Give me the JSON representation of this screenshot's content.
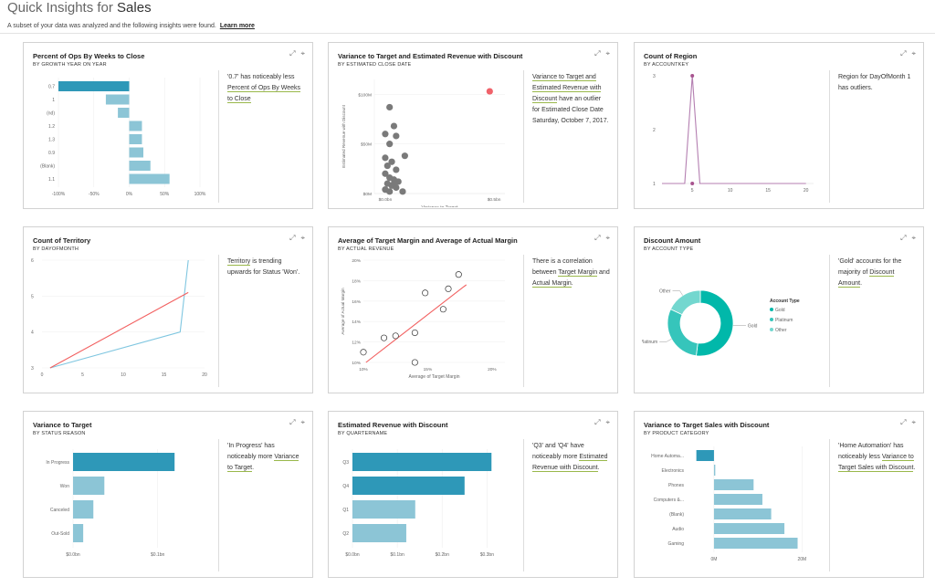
{
  "header": {
    "title_prefix": "Quick Insights for ",
    "title_strong": "Sales",
    "subtitle": "A subset of your data was analyzed and the following insights were found.",
    "learn_more": "Learn more"
  },
  "icons": {
    "expand": "expand-icon",
    "pin": "pin-icon"
  },
  "cards": {
    "c1": {
      "title": "Percent of Ops By Weeks to Close",
      "subtitle": "BY GROWTH YEAR ON YEAR",
      "insight_pre": "'0.7' has noticeably less ",
      "insight_link": "Percent of Ops By Weeks to Close",
      "insight_post": "",
      "chart_data": {
        "type": "bar",
        "orientation": "horizontal",
        "categories": [
          "0.7",
          "1",
          "(nd)",
          "1.2",
          "1.3",
          "0.9",
          "(Blank)",
          "1.1"
        ],
        "values": [
          -100,
          -33,
          -16,
          18,
          18,
          20,
          30,
          57
        ],
        "highlight_index": 0,
        "xticks": [
          "-100%",
          "-50%",
          "0%",
          "50%",
          "100%"
        ],
        "xlim": [
          -100,
          100
        ]
      }
    },
    "c2": {
      "title": "Variance to Target and Estimated Revenue with Discount",
      "subtitle": "BY ESTIMATED CLOSE DATE",
      "insight_pre": "",
      "insight_link": "Variance to Target and Estimated Revenue with Discount",
      "insight_post": " have an outlier for Estimated Close Date Saturday, October 7, 2017.",
      "chart_data": {
        "type": "scatter",
        "xlabel": "Variance to Target",
        "ylabel": "Estimated Revenue with Discount",
        "xticks": [
          "$0.0bn",
          "$0.5bn"
        ],
        "yticks": [
          "$100M",
          "$50M",
          "$0M"
        ],
        "xlim": [
          -0.05,
          0.55
        ],
        "ylim": [
          0,
          115
        ],
        "points": [
          [
            0.02,
            87
          ],
          [
            0.04,
            68
          ],
          [
            0.0,
            60
          ],
          [
            0.05,
            58
          ],
          [
            0.02,
            50
          ],
          [
            0.09,
            38
          ],
          [
            0.0,
            36
          ],
          [
            0.03,
            32
          ],
          [
            0.01,
            28
          ],
          [
            0.05,
            24
          ],
          [
            0.0,
            20
          ],
          [
            0.02,
            16
          ],
          [
            0.04,
            14
          ],
          [
            0.06,
            12
          ],
          [
            0.01,
            10
          ],
          [
            0.03,
            8
          ],
          [
            0.05,
            6
          ],
          [
            0.0,
            4
          ],
          [
            0.02,
            2
          ],
          [
            0.08,
            2
          ],
          [
            0.04,
            10
          ]
        ],
        "outlier": [
          0.48,
          103
        ]
      }
    },
    "c3": {
      "title": "Count of Region",
      "subtitle": "BY ACCOUNTKEY",
      "insight_pre": "Region for DayOfMonth 1 has outliers.",
      "insight_link": "",
      "insight_post": "",
      "chart_data": {
        "type": "line",
        "x": [
          1,
          4,
          5,
          6,
          20
        ],
        "y": [
          1,
          1,
          3,
          1,
          1
        ],
        "xticks": [
          "5",
          "10",
          "15",
          "20"
        ],
        "yticks": [
          "3",
          "2",
          "1"
        ],
        "xlim": [
          1,
          21
        ],
        "ylim": [
          1,
          3
        ],
        "outlier_index": 2
      }
    },
    "c4": {
      "title": "Count of Territory",
      "subtitle": "BY DAYOFMONTH",
      "insight_pre": "",
      "insight_link": "Territory",
      "insight_post": " is trending upwards for Status 'Won'.",
      "insight_link2": "Status 'Won'",
      "chart_data": {
        "type": "line",
        "xticks": [
          "0",
          "5",
          "10",
          "15",
          "20"
        ],
        "yticks": [
          "6",
          "5",
          "4",
          "3"
        ],
        "xlim": [
          0,
          20
        ],
        "ylim": [
          3,
          6
        ],
        "series": [
          {
            "x": [
              1,
              17,
              17.5,
              18
            ],
            "y": [
              3,
              4,
              5,
              6
            ]
          },
          {
            "x": [
              1,
              18
            ],
            "y": [
              3,
              5.1
            ]
          }
        ]
      }
    },
    "c5": {
      "title": "Average of Target Margin and Average of Actual Margin",
      "subtitle": "BY ACTUAL REVENUE",
      "insight_pre": "There is a correlation between ",
      "insight_link": "Target Margin",
      "insight_mid": " and ",
      "insight_link2": "Actual Margin",
      "insight_post": ".",
      "chart_data": {
        "type": "scatter",
        "xlabel": "Average of Target Margin",
        "ylabel": "Average of Actual Margin",
        "xticks": [
          "10%",
          "15%",
          "20%"
        ],
        "yticks": [
          "20%",
          "18%",
          "16%",
          "14%",
          "12%",
          "10%"
        ],
        "xlim": [
          10,
          21
        ],
        "ylim": [
          10,
          20
        ],
        "points": [
          [
            10.0,
            11.0
          ],
          [
            11.6,
            12.4
          ],
          [
            12.5,
            12.6
          ],
          [
            14.0,
            12.9
          ],
          [
            14.0,
            10.0
          ],
          [
            14.8,
            16.8
          ],
          [
            16.2,
            15.2
          ],
          [
            16.6,
            17.2
          ],
          [
            17.4,
            18.6
          ]
        ],
        "trend": [
          [
            10.2,
            10.0
          ],
          [
            18.0,
            17.6
          ]
        ]
      }
    },
    "c6": {
      "title": "Discount Amount",
      "subtitle": "BY ACCOUNT TYPE",
      "insight_pre": "'Gold' accounts for the majority of ",
      "insight_link": "Discount Amount",
      "insight_post": ".",
      "chart_data": {
        "type": "pie",
        "legend_title": "Account Type",
        "categories": [
          "Gold",
          "Platinum",
          "Other"
        ],
        "values": [
          52,
          30,
          18
        ],
        "colors": [
          "#01b8aa",
          "#36c5bb",
          "#73d7cf"
        ],
        "slice_labels": [
          "Gold",
          "Platinum",
          "Other"
        ]
      }
    },
    "c7": {
      "title": "Variance to Target",
      "subtitle": "BY STATUS REASON",
      "insight_pre": "'In Progress' has noticeably more ",
      "insight_link": "Variance to Target",
      "insight_post": ".",
      "chart_data": {
        "type": "bar",
        "orientation": "horizontal",
        "categories": [
          "In Progress",
          "Won",
          "Canceled",
          "Out-Sold"
        ],
        "values": [
          0.12,
          0.037,
          0.024,
          0.012
        ],
        "highlight_index": 0,
        "xticks": [
          "$0.0bn",
          "$0.1bn"
        ],
        "xlim": [
          0,
          0.15
        ]
      }
    },
    "c8": {
      "title": "Estimated Revenue with Discount",
      "subtitle": "BY QUARTERNAME",
      "insight_pre": "'Q3' and 'Q4' have noticeably more ",
      "insight_link": "Estimated Revenue with Discount",
      "insight_post": ".",
      "chart_data": {
        "type": "bar",
        "orientation": "horizontal",
        "categories": [
          "Q3",
          "Q4",
          "Q1",
          "Q2"
        ],
        "values": [
          0.31,
          0.25,
          0.14,
          0.12
        ],
        "highlight_count": 2,
        "xticks": [
          "$0.0bn",
          "$0.1bn",
          "$0.2bn",
          "$0.3bn"
        ],
        "xlim": [
          0,
          0.34
        ]
      }
    },
    "c9": {
      "title": "Variance to Target Sales with Discount",
      "subtitle": "BY PRODUCT CATEGORY",
      "insight_pre": "'Home Automation' has noticeably less ",
      "insight_link": "Variance to Target Sales with Discount",
      "insight_post": ".",
      "chart_data": {
        "type": "bar",
        "orientation": "horizontal",
        "categories": [
          "Home Automa...",
          "Electronics",
          "Phones",
          "Computers &...",
          "(Blank)",
          "Audio",
          "Gaming"
        ],
        "values": [
          -4,
          0.3,
          9,
          11,
          13,
          16,
          19
        ],
        "highlight_index": 0,
        "xticks": [
          "0M",
          "20M"
        ],
        "xlim": [
          -6,
          22
        ]
      }
    }
  }
}
